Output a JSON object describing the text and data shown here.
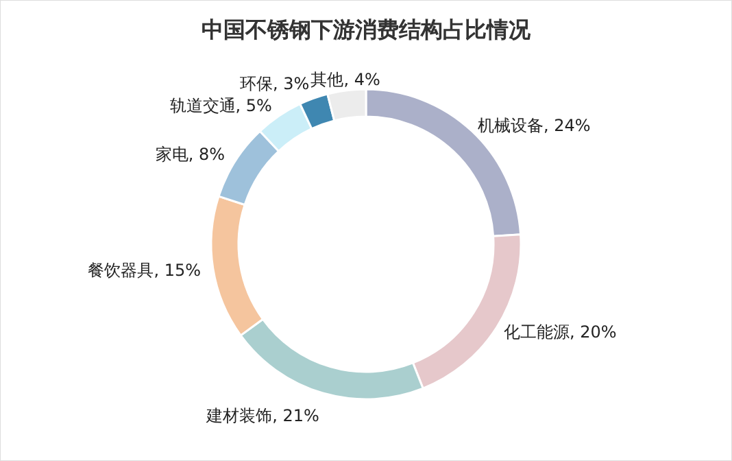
{
  "chart_data": {
    "type": "donut",
    "title": "中国不锈钢下游消费结构占比情况",
    "categories": [
      "机械设备",
      "化工能源",
      "建材装饰",
      "餐饮器具",
      "家电",
      "轨道交通",
      "环保",
      "其他"
    ],
    "values": [
      24,
      20,
      21,
      15,
      8,
      5,
      3,
      4
    ],
    "value_labels": [
      "24%",
      "20%",
      "21%",
      "15%",
      "8%",
      "5%",
      "3%",
      "4%"
    ],
    "colors": [
      "#abb0c9",
      "#e6c8cb",
      "#aacfcf",
      "#f5c59e",
      "#9ec1db",
      "#cbeef8",
      "#3f87b1",
      "#ececec"
    ]
  }
}
